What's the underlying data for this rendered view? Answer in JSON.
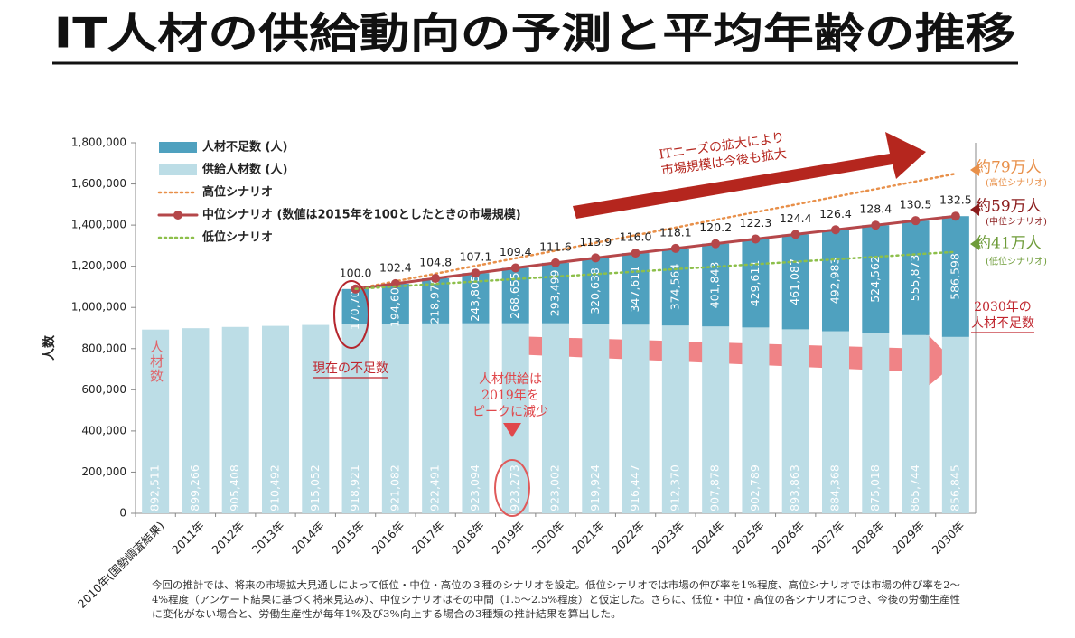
{
  "chart_data": {
    "type": "stacked_bar",
    "title": "IT人材の供給動向の予測と平均年齢の推移",
    "y_label": "人数",
    "categories": [
      "2010年(国勢調査結果)",
      "2011年",
      "2012年",
      "2013年",
      "2014年",
      "2015年",
      "2016年",
      "2017年",
      "2018年",
      "2019年",
      "2020年",
      "2021年",
      "2022年",
      "2023年",
      "2024年",
      "2025年",
      "2026年",
      "2027年",
      "2028年",
      "2029年",
      "2030年"
    ],
    "ylim": [
      0,
      1800000
    ],
    "yticks": [
      {
        "value": 0,
        "label": "0"
      },
      {
        "value": 200000,
        "label": "200,000"
      },
      {
        "value": 400000,
        "label": "400,000"
      },
      {
        "value": 600000,
        "label": "600,000"
      },
      {
        "value": 800000,
        "label": "800,000"
      },
      {
        "value": 1000000,
        "label": "1,000,000"
      },
      {
        "value": 1200000,
        "label": "1,200,000"
      },
      {
        "value": 1400000,
        "label": "1,400,000"
      },
      {
        "value": 1600000,
        "label": "1,600,000"
      },
      {
        "value": 1800000,
        "label": "1,800,000"
      }
    ],
    "grid": false,
    "series": [
      {
        "name": "人材不足数 (人)",
        "kind": "bar",
        "color": "#4fa1bf",
        "values": [
          null,
          null,
          null,
          null,
          null,
          170700,
          194608,
          218976,
          243805,
          268655,
          293499,
          320638,
          347611,
          374564,
          401843,
          429611,
          461087,
          492983,
          524562,
          555873,
          586598
        ],
        "value_labels": [
          null,
          null,
          null,
          null,
          null,
          "170,700",
          "194,608",
          "218,976",
          "243,805",
          "268,655",
          "293,499",
          "320,638",
          "347,611",
          "374,564",
          "401,843",
          "429,611",
          "461,087",
          "492,983",
          "524,562",
          "555,873",
          "586,598"
        ]
      },
      {
        "name": "供給人材数 (人)",
        "kind": "bar",
        "color": "#bcdde6",
        "values": [
          892511,
          899266,
          905408,
          910492,
          915052,
          918921,
          921082,
          922491,
          923094,
          923273,
          923002,
          919924,
          916447,
          912370,
          907878,
          902789,
          893863,
          884368,
          875018,
          865744,
          856845
        ],
        "value_labels": [
          "892,511",
          "899,266",
          "905,408",
          "910,492",
          "915,052",
          "918,921",
          "921,082",
          "922,491",
          "923,094",
          "923,273",
          "923,002",
          "919,924",
          "916,447",
          "912,370",
          "907,878",
          "902,789",
          "893,863",
          "884,368",
          "875,018",
          "865,744",
          "856,845"
        ]
      },
      {
        "name": "高位シナリオ",
        "kind": "dotted",
        "color": "#e8904a",
        "values": [
          null,
          null,
          null,
          null,
          null,
          1089621,
          1127000,
          1164000,
          1202000,
          1239000,
          1276000,
          1314000,
          1351000,
          1388000,
          1426000,
          1463000,
          1500000,
          1538000,
          1575000,
          1612000,
          1650000
        ]
      },
      {
        "name": "中位シナリオ (数値は2015年を100としたときの市場規模)",
        "kind": "stack_top",
        "color": "#b5474a",
        "index_labels": [
          null,
          null,
          null,
          null,
          null,
          "100.0",
          "102.4",
          "104.8",
          "107.1",
          "109.4",
          "111.6",
          "113.9",
          "116.0",
          "118.1",
          "120.2",
          "122.3",
          "124.4",
          "126.4",
          "128.4",
          "130.5",
          "132.5"
        ]
      },
      {
        "name": "低位シナリオ",
        "kind": "dotted",
        "color": "#8dbf4a",
        "values": [
          null,
          null,
          null,
          null,
          null,
          1089621,
          1102000,
          1114000,
          1126000,
          1138000,
          1150000,
          1162000,
          1174000,
          1186000,
          1198000,
          1210000,
          1222000,
          1234000,
          1246000,
          1258000,
          1270000
        ]
      }
    ],
    "annotations": {
      "high_total": "約79万人",
      "high_note": "(高位シナリオ)",
      "mid_total": "約59万人",
      "mid_note": "(中位シナリオ)",
      "low_total": "約41万人",
      "low_note": "(低位シナリオ)",
      "market_1": "ITニーズの拡大により",
      "market_2": "市場規模は今後も拡大",
      "short2030_1": "2030年の",
      "short2030_2": "人材不足数",
      "current_short": "現在の不足数",
      "peak_1": "人材供給は",
      "peak_2": "2019年を",
      "peak_3": "ピークに減少",
      "people": "人材数"
    },
    "footnote": [
      "今回の推計では、将来の市場拡大見通しによって低位・中位・高位の３種のシナリオを設定。低位シナリオでは市場の伸び率を1%程度、高位シナリオでは市場の伸び率を2～",
      "4%程度（アンケート結果に基づく将来見込み）、中位シナリオはその中間（1.5～2.5%程度）と仮定した。さらに、低位・中位・高位の各シナリオにつき、今後の労働生産性",
      "に変化がない場合と、労働生産性が毎年1%及び3%向上する場合の3種類の推計結果を算出した。"
    ]
  }
}
